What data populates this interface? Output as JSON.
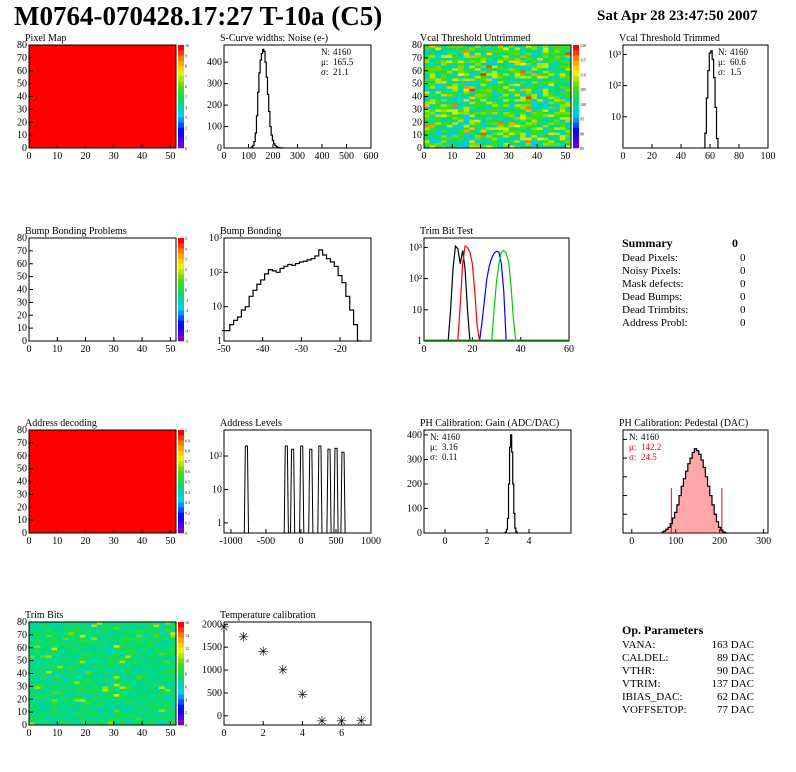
{
  "header": {
    "title": "M0764-070428.17:27 T-10a (C5)",
    "date": "Sat Apr 28 23:47:50 2007"
  },
  "colors": {
    "hist_line": "#000000",
    "red": "#ff0000",
    "green": "#00cc00",
    "blue": "#0000ff",
    "pedestal_fill": "#ff0000"
  },
  "chart_data": [
    {
      "id": "pixel-map",
      "type": "heatmap",
      "title": "Pixel Map",
      "xlim": [
        0,
        52
      ],
      "ylim": [
        0,
        80
      ],
      "xticks": [
        "0",
        "10",
        "20",
        "30",
        "40",
        "50"
      ],
      "yticks": [
        "0",
        "10",
        "20",
        "30",
        "40",
        "50",
        "60",
        "70",
        "80"
      ],
      "fill": "uniform-red",
      "colorbar": {
        "ticks": [
          "0",
          "1",
          "2",
          "3",
          "4",
          "5",
          "6",
          "7",
          "8",
          "9",
          "10"
        ]
      }
    },
    {
      "id": "scurve-widths",
      "type": "bar",
      "title": "S-Curve widths: Noise (e-)",
      "xlim": [
        0,
        600
      ],
      "ylim": [
        0,
        480
      ],
      "xticks": [
        "0",
        "100",
        "200",
        "300",
        "400",
        "500",
        "600"
      ],
      "yticks": [
        "0",
        "100",
        "200",
        "300",
        "400"
      ],
      "stats": [
        {
          "label": "N:",
          "value": "4160"
        },
        {
          "label": "μ:",
          "value": "165.5"
        },
        {
          "label": "σ:",
          "value": "21.1"
        }
      ],
      "x": [
        110,
        115,
        120,
        125,
        130,
        135,
        140,
        145,
        150,
        155,
        160,
        165,
        170,
        175,
        180,
        185,
        190,
        195,
        200,
        205,
        210,
        215,
        220,
        225,
        230,
        235,
        240
      ],
      "values": [
        0,
        5,
        12,
        30,
        70,
        150,
        260,
        350,
        410,
        440,
        460,
        450,
        400,
        330,
        250,
        170,
        100,
        60,
        35,
        20,
        12,
        6,
        3,
        2,
        1,
        0,
        0
      ]
    },
    {
      "id": "vcal-untrimmed",
      "type": "heatmap",
      "title": "Vcal Threshold Untrimmed",
      "xlim": [
        0,
        52
      ],
      "ylim": [
        0,
        80
      ],
      "xticks": [
        "0",
        "10",
        "20",
        "30",
        "40",
        "50"
      ],
      "yticks": [
        "0",
        "10",
        "20",
        "30",
        "40",
        "50",
        "60",
        "70",
        "80"
      ],
      "fill": "noisy-cyan-green-yellow",
      "colorbar": {
        "ticks": [
          "85",
          "90",
          "95",
          "100",
          "105",
          "110",
          "115",
          "120"
        ]
      }
    },
    {
      "id": "vcal-trimmed",
      "type": "bar",
      "title": "Vcal Threshold Trimmed",
      "log": true,
      "xlim": [
        0,
        100
      ],
      "ylim": [
        1,
        2000
      ],
      "xticks": [
        "0",
        "20",
        "40",
        "60",
        "80",
        "100"
      ],
      "yticks": [
        "10",
        "10²",
        "10³"
      ],
      "stats": [
        {
          "label": "N:",
          "value": "4160"
        },
        {
          "label": "μ:",
          "value": "60.6"
        },
        {
          "label": "σ:",
          "value": "1.5"
        }
      ],
      "x": [
        56,
        57,
        58,
        59,
        60,
        61,
        62,
        63,
        64,
        65,
        66
      ],
      "values": [
        1,
        3,
        40,
        300,
        1100,
        1300,
        700,
        180,
        20,
        2,
        1
      ]
    },
    {
      "id": "bump-bonding-problems",
      "type": "heatmap",
      "title": "Bump Bonding Problems",
      "xlim": [
        0,
        52
      ],
      "ylim": [
        0,
        80
      ],
      "xticks": [
        "0",
        "10",
        "20",
        "30",
        "40",
        "50"
      ],
      "yticks": [
        "0",
        "10",
        "20",
        "30",
        "40",
        "50",
        "60",
        "70",
        "80"
      ],
      "fill": "empty",
      "colorbar": {
        "ticks": [
          "-5",
          "-4",
          "-3",
          "-2",
          "-1",
          "0",
          "1",
          "2",
          "3",
          "4",
          "5"
        ]
      }
    },
    {
      "id": "bump-bonding",
      "type": "bar",
      "title": "Bump Bonding",
      "log": true,
      "xlim": [
        -50,
        -12
      ],
      "ylim": [
        1,
        1000
      ],
      "xticks": [
        "-50",
        "-40",
        "-30",
        "-20"
      ],
      "yticks": [
        "1",
        "10",
        "10²",
        "10³"
      ],
      "x": [
        -50,
        -49,
        -48,
        -47,
        -46,
        -45,
        -44,
        -43,
        -42,
        -41,
        -40,
        -39,
        -38,
        -37,
        -36,
        -35,
        -34,
        -33,
        -32,
        -31,
        -30,
        -29,
        -28,
        -27,
        -26,
        -25,
        -24,
        -23,
        -22,
        -21,
        -20,
        -19,
        -18,
        -17,
        -16,
        -15
      ],
      "values": [
        2,
        2,
        3,
        4,
        5,
        8,
        10,
        20,
        30,
        45,
        60,
        90,
        120,
        110,
        100,
        130,
        150,
        170,
        160,
        180,
        200,
        210,
        230,
        250,
        300,
        450,
        320,
        250,
        200,
        150,
        80,
        50,
        20,
        8,
        3,
        1
      ]
    },
    {
      "id": "trim-bit-test",
      "type": "line",
      "title": "Trim Bit Test",
      "log": true,
      "xlim": [
        0,
        60
      ],
      "ylim": [
        1,
        2000
      ],
      "xticks": [
        "0",
        "20",
        "40",
        "60"
      ],
      "yticks": [
        "1",
        "10",
        "10²",
        "10³"
      ],
      "series": [
        {
          "color": "#000000",
          "x": [
            10,
            11,
            12,
            13,
            14,
            15,
            16,
            17,
            18,
            19
          ],
          "values": [
            1,
            10,
            200,
            1100,
            900,
            300,
            800,
            200,
            10,
            1
          ]
        },
        {
          "color": "#ff0000",
          "x": [
            14,
            15,
            16,
            17,
            18,
            19,
            20,
            21,
            22,
            23
          ],
          "values": [
            1,
            15,
            300,
            1100,
            1000,
            700,
            300,
            40,
            3,
            1
          ]
        },
        {
          "color": "#0000ff",
          "x": [
            23,
            24,
            25,
            26,
            27,
            28,
            29,
            30,
            31,
            32,
            33,
            34
          ],
          "values": [
            1,
            4,
            20,
            100,
            250,
            450,
            650,
            750,
            700,
            300,
            40,
            1
          ]
        },
        {
          "color": "#00cc00",
          "x": [
            28,
            29,
            30,
            31,
            32,
            33,
            34,
            35,
            36,
            37,
            38
          ],
          "values": [
            1,
            10,
            80,
            300,
            700,
            800,
            650,
            350,
            60,
            5,
            1
          ]
        }
      ]
    },
    {
      "id": "address-decoding",
      "type": "heatmap",
      "title": "Address decoding",
      "xlim": [
        0,
        52
      ],
      "ylim": [
        0,
        80
      ],
      "xticks": [
        "0",
        "10",
        "20",
        "30",
        "40",
        "50"
      ],
      "yticks": [
        "0",
        "10",
        "20",
        "30",
        "40",
        "50",
        "60",
        "70",
        "80"
      ],
      "fill": "uniform-red",
      "colorbar": {
        "ticks": [
          "0",
          "0.1",
          "0.2",
          "0.3",
          "0.4",
          "0.5",
          "0.6",
          "0.7",
          "0.8",
          "0.9",
          "1"
        ]
      }
    },
    {
      "id": "address-levels",
      "type": "bar",
      "title": "Address Levels",
      "log": true,
      "xlim": [
        -1100,
        1000
      ],
      "ylim": [
        0.5,
        600
      ],
      "xticks": [
        "-1000",
        "-500",
        "0",
        "500",
        "1000"
      ],
      "yticks": [
        "1",
        "10",
        "10²"
      ],
      "peaks": [
        -780,
        -210,
        -120,
        10,
        140,
        270,
        400,
        500,
        600
      ],
      "heights": [
        200,
        200,
        160,
        200,
        160,
        200,
        160,
        170,
        130
      ],
      "peak_width": 60
    },
    {
      "id": "ph-gain",
      "type": "bar",
      "title": "PH Calibration: Gain (ADC/DAC)",
      "xlim": [
        -1,
        6
      ],
      "ylim": [
        0,
        420
      ],
      "xticks": [
        "0",
        "2",
        "4"
      ],
      "yticks": [
        "0",
        "100",
        "200",
        "300",
        "400"
      ],
      "stats": [
        {
          "label": "N:",
          "value": "4160"
        },
        {
          "label": "μ:",
          "value": "3.16"
        },
        {
          "label": "σ:",
          "value": "0.11"
        }
      ],
      "x": [
        2.85,
        2.9,
        2.95,
        3.0,
        3.05,
        3.1,
        3.15,
        3.2,
        3.25,
        3.3,
        3.35,
        3.4,
        3.45
      ],
      "values": [
        0,
        4,
        15,
        60,
        200,
        350,
        400,
        330,
        200,
        80,
        20,
        5,
        0
      ]
    },
    {
      "id": "ph-pedestal",
      "type": "bar",
      "title": "PH Calibration: Pedestal (DAC)",
      "xlim": [
        -20,
        310
      ],
      "ylim": [
        0,
        110
      ],
      "xticks": [
        "0",
        "100",
        "200",
        "300"
      ],
      "yticks": [
        "0",
        "20",
        "40",
        "60",
        "80",
        "100"
      ],
      "stats": [
        {
          "label": "N:",
          "value": "4160"
        },
        {
          "label": "μ:",
          "value": "142.2",
          "color": "#ff0000"
        },
        {
          "label": "σ:",
          "value": "24.5",
          "color": "#ff0000"
        }
      ],
      "x": [
        70,
        75,
        80,
        85,
        90,
        95,
        100,
        105,
        110,
        115,
        120,
        125,
        130,
        135,
        140,
        145,
        150,
        155,
        160,
        165,
        170,
        175,
        180,
        185,
        190,
        195,
        200,
        205,
        210,
        215
      ],
      "values": [
        1,
        2,
        4,
        6,
        10,
        16,
        22,
        30,
        40,
        50,
        58,
        66,
        74,
        80,
        86,
        90,
        88,
        84,
        78,
        70,
        60,
        50,
        40,
        30,
        20,
        12,
        6,
        3,
        1,
        0
      ],
      "markers": [
        {
          "x": 90,
          "y": 48
        },
        {
          "x": 205,
          "y": 48
        }
      ]
    },
    {
      "id": "trim-bits",
      "type": "heatmap",
      "title": "Trim Bits",
      "xlim": [
        0,
        52
      ],
      "ylim": [
        0,
        80
      ],
      "xticks": [
        "0",
        "10",
        "20",
        "30",
        "40",
        "50"
      ],
      "yticks": [
        "0",
        "10",
        "20",
        "30",
        "40",
        "50",
        "60",
        "70",
        "80"
      ],
      "fill": "noisy-green",
      "colorbar": {
        "ticks": [
          "0",
          "2",
          "4",
          "6",
          "8",
          "10",
          "12",
          "14",
          "16"
        ]
      }
    },
    {
      "id": "temperature-calibration",
      "type": "scatter",
      "title": "Temperature calibration",
      "xlim": [
        0,
        7.5
      ],
      "ylim": [
        -200,
        2050
      ],
      "xticks": [
        "0",
        "2",
        "4",
        "6"
      ],
      "yticks": [
        "0",
        "500",
        "1000",
        "1500",
        "2000"
      ],
      "x": [
        0,
        1,
        2,
        3,
        4,
        5,
        6,
        7
      ],
      "values": [
        1950,
        1730,
        1420,
        1010,
        480,
        -100,
        -100,
        -100
      ]
    }
  ],
  "summary": {
    "title": "Summary",
    "title_value": "0",
    "rows": [
      {
        "label": "Dead Pixels:",
        "value": "0"
      },
      {
        "label": "Noisy Pixels:",
        "value": "0"
      },
      {
        "label": "Mask defects:",
        "value": "0"
      },
      {
        "label": "Dead Bumps:",
        "value": "0"
      },
      {
        "label": "Dead Trimbits:",
        "value": "0"
      },
      {
        "label": "Address Probl:",
        "value": "0"
      }
    ]
  },
  "op_parameters": {
    "title": "Op. Parameters",
    "rows": [
      {
        "label": "VANA:",
        "value": "163 DAC"
      },
      {
        "label": "CALDEL:",
        "value": "89 DAC"
      },
      {
        "label": "VTHR:",
        "value": "90 DAC"
      },
      {
        "label": "VTRIM:",
        "value": "137 DAC"
      },
      {
        "label": "IBIAS_DAC:",
        "value": "62 DAC"
      },
      {
        "label": "VOFFSETOP:",
        "value": "77 DAC"
      }
    ]
  }
}
